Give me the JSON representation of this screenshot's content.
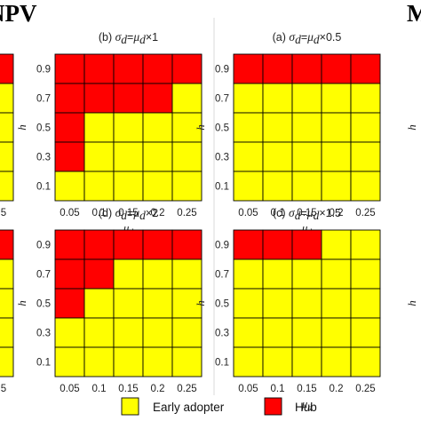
{
  "header": {
    "left_label": "NPV",
    "right_label": "M"
  },
  "legend": [
    {
      "label": "Early adopter",
      "color": "#ffff00"
    },
    {
      "label": "Hub",
      "color": "#ff0000"
    }
  ],
  "chart_data": [
    {
      "type": "heatmap",
      "panel": "b",
      "title": {
        "prefix": "(b) ",
        "sigma": "σ",
        "sub_d": "d",
        "eq": "=",
        "mu": "μ",
        "sub_d2": "d",
        "suffix": "×1"
      },
      "x": [
        "0.05",
        "0.1",
        "0.15",
        "0.2",
        "0.25"
      ],
      "y": [
        "0.9",
        "0.7",
        "0.5",
        "0.3",
        "0.1"
      ],
      "xlabel": {
        "main": "μ",
        "sub": "d"
      },
      "ylabel": "h",
      "cells": [
        [
          "Hub",
          "Hub",
          "Hub",
          "Hub",
          "Hub"
        ],
        [
          "Hub",
          "Hub",
          "Hub",
          "Hub",
          "Early adopter"
        ],
        [
          "Hub",
          "Early adopter",
          "Early adopter",
          "Early adopter",
          "Early adopter"
        ],
        [
          "Hub",
          "Early adopter",
          "Early adopter",
          "Early adopter",
          "Early adopter"
        ],
        [
          "Early adopter",
          "Early adopter",
          "Early adopter",
          "Early adopter",
          "Early adopter"
        ]
      ]
    },
    {
      "type": "heatmap",
      "panel": "a",
      "title": {
        "prefix": "(a) ",
        "sigma": "σ",
        "sub_d": "d",
        "eq": "=",
        "mu": "μ",
        "sub_d2": "d",
        "suffix": "×0.5"
      },
      "x": [
        "0.05",
        "0.1",
        "0.15",
        "0.2",
        "0.25"
      ],
      "y": [
        "0.9",
        "0.7",
        "0.5",
        "0.3",
        "0.1"
      ],
      "xlabel": {
        "main": "μ",
        "sub": "d"
      },
      "ylabel": "h",
      "cells": [
        [
          "Hub",
          "Hub",
          "Hub",
          "Hub",
          "Hub"
        ],
        [
          "Early adopter",
          "Early adopter",
          "Early adopter",
          "Early adopter",
          "Early adopter"
        ],
        [
          "Early adopter",
          "Early adopter",
          "Early adopter",
          "Early adopter",
          "Early adopter"
        ],
        [
          "Early adopter",
          "Early adopter",
          "Early adopter",
          "Early adopter",
          "Early adopter"
        ],
        [
          "Early adopter",
          "Early adopter",
          "Early adopter",
          "Early adopter",
          "Early adopter"
        ]
      ]
    },
    {
      "type": "heatmap",
      "panel": "d",
      "title": {
        "prefix": "(d) ",
        "sigma": "σ",
        "sub_d": "d",
        "eq": "=",
        "mu": "μ",
        "sub_d2": "d",
        "suffix": "×2"
      },
      "x": [
        "0.05",
        "0.1",
        "0.15",
        "0.2",
        "0.25"
      ],
      "y": [
        "0.9",
        "0.7",
        "0.5",
        "0.3",
        "0.1"
      ],
      "xlabel": {
        "main": "μ",
        "sub": "d"
      },
      "ylabel": "h",
      "cells": [
        [
          "Hub",
          "Hub",
          "Hub",
          "Hub",
          "Hub"
        ],
        [
          "Hub",
          "Hub",
          "Early adopter",
          "Early adopter",
          "Early adopter"
        ],
        [
          "Hub",
          "Early adopter",
          "Early adopter",
          "Early adopter",
          "Early adopter"
        ],
        [
          "Early adopter",
          "Early adopter",
          "Early adopter",
          "Early adopter",
          "Early adopter"
        ],
        [
          "Early adopter",
          "Early adopter",
          "Early adopter",
          "Early adopter",
          "Early adopter"
        ]
      ]
    },
    {
      "type": "heatmap",
      "panel": "c",
      "title": {
        "prefix": "(c) ",
        "sigma": "σ",
        "sub_d": "d",
        "eq": "=",
        "mu": "μ",
        "sub_d2": "d",
        "suffix": "×1.5"
      },
      "x": [
        "0.05",
        "0.1",
        "0.15",
        "0.2",
        "0.25"
      ],
      "y": [
        "0.9",
        "0.7",
        "0.5",
        "0.3",
        "0.1"
      ],
      "xlabel": {
        "main": "μ",
        "sub": "d"
      },
      "ylabel": "h",
      "cells": [
        [
          "Hub",
          "Hub",
          "Hub",
          "Early adopter",
          "Early adopter"
        ],
        [
          "Early adopter",
          "Early adopter",
          "Early adopter",
          "Early adopter",
          "Early adopter"
        ],
        [
          "Early adopter",
          "Early adopter",
          "Early adopter",
          "Early adopter",
          "Early adopter"
        ],
        [
          "Early adopter",
          "Early adopter",
          "Early adopter",
          "Early adopter",
          "Early adopter"
        ],
        [
          "Early adopter",
          "Early adopter",
          "Early adopter",
          "Early adopter",
          "Early adopter"
        ]
      ]
    }
  ],
  "cropped_left": {
    "y_top": [
      "0.9",
      "0.7",
      "0.5",
      "0.3",
      "0.1"
    ],
    "x_partial_top": "5",
    "y_bottom": [
      "0.9",
      "0.7",
      "0.5",
      "0.3",
      "0.1"
    ],
    "x_partial_bottom": "5",
    "cells_top": [
      "Hub",
      "Early adopter",
      "Early adopter",
      "Early adopter",
      "Early adopter"
    ],
    "cells_bottom": [
      "Hub",
      "Early adopter",
      "Early adopter",
      "Early adopter",
      "Early adopter"
    ]
  },
  "cropped_right": {
    "ylabel": "h"
  }
}
